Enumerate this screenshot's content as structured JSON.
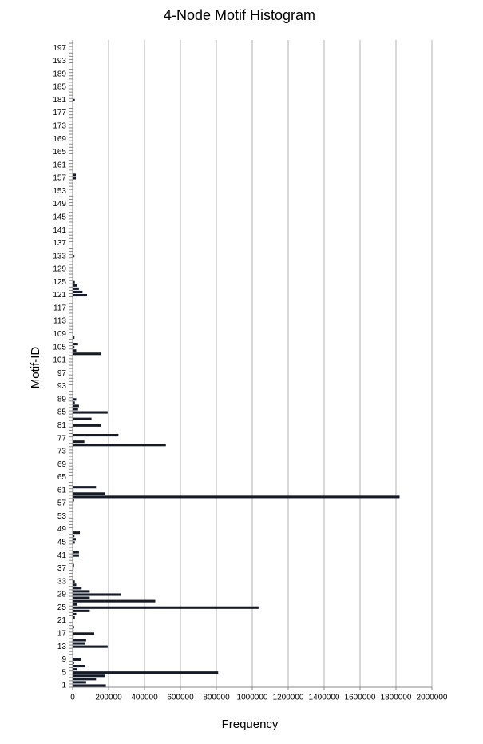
{
  "chart_data": {
    "type": "barh",
    "title": "4-Node Motif Histogram",
    "xlabel": "Frequency",
    "ylabel": "Motif-ID",
    "categories": [
      "1",
      null,
      null,
      null,
      "5",
      null,
      null,
      null,
      "9",
      null,
      null,
      null,
      "13",
      null,
      null,
      null,
      "17",
      null,
      null,
      null,
      "21",
      null,
      null,
      null,
      "25",
      null,
      null,
      null,
      "29",
      null,
      null,
      null,
      "33",
      null,
      null,
      null,
      "37",
      null,
      null,
      null,
      "41",
      null,
      null,
      null,
      "45",
      null,
      null,
      null,
      "49",
      null,
      null,
      null,
      "53",
      null,
      null,
      null,
      "57",
      null,
      null,
      null,
      "61",
      null,
      null,
      null,
      "65",
      null,
      null,
      null,
      "69",
      null,
      null,
      null,
      "73",
      null,
      null,
      null,
      "77",
      null,
      null,
      null,
      "81",
      null,
      null,
      null,
      "85",
      null,
      null,
      null,
      "89",
      null,
      null,
      null,
      "93",
      null,
      null,
      null,
      "97",
      null,
      null,
      null,
      "101",
      null,
      null,
      null,
      "105",
      null,
      null,
      null,
      "109",
      null,
      null,
      null,
      "113",
      null,
      null,
      null,
      "117",
      null,
      null,
      null,
      "121",
      null,
      null,
      null,
      "125",
      null,
      null,
      null,
      "129",
      null,
      null,
      null,
      "133",
      null,
      null,
      null,
      "137",
      null,
      null,
      null,
      "141",
      null,
      null,
      null,
      "145",
      null,
      null,
      null,
      "149",
      null,
      null,
      null,
      "153",
      null,
      null,
      null,
      "157",
      null,
      null,
      null,
      "161",
      null,
      null,
      null,
      "165",
      null,
      null,
      null,
      "169",
      null,
      null,
      null,
      "173",
      null,
      null,
      null,
      "177",
      null,
      null,
      null,
      "181",
      null,
      null,
      null,
      "185",
      null,
      null,
      null,
      "189",
      null,
      null,
      null,
      "193",
      null,
      null,
      null,
      "197",
      null,
      null
    ],
    "values": [
      185000,
      75000,
      130000,
      180000,
      810000,
      25000,
      70000,
      8000,
      45000,
      3000,
      2000,
      2000,
      195000,
      70000,
      75000,
      5000,
      120000,
      5000,
      8000,
      4000,
      2000,
      12000,
      20000,
      95000,
      1035000,
      25000,
      460000,
      95000,
      270000,
      95000,
      50000,
      20000,
      12000,
      4000,
      3000,
      2000,
      5000,
      8000,
      2000,
      2000,
      35000,
      35000,
      3000,
      2000,
      12000,
      18000,
      10000,
      40000,
      3000,
      2000,
      2000,
      2000,
      2000,
      2000,
      2000,
      2000,
      3000,
      8000,
      1820000,
      180000,
      5000,
      130000,
      3000,
      2000,
      3000,
      2000,
      2000,
      5000,
      3000,
      2000,
      2000,
      2000,
      2000,
      2000,
      519000,
      65000,
      3000,
      255000,
      3000,
      2000,
      160000,
      2000,
      105000,
      5000,
      195000,
      30000,
      35000,
      12000,
      20000,
      2000,
      2000,
      2000,
      2000,
      2000,
      2000,
      2000,
      2000,
      2000,
      2000,
      2000,
      2000,
      2000,
      160000,
      20000,
      10000,
      30000,
      3000,
      10000,
      2000,
      2000,
      2000,
      2000,
      2000,
      2000,
      2000,
      2000,
      2000,
      2000,
      2000,
      2000,
      80000,
      55000,
      35000,
      25000,
      12000,
      2000,
      2000,
      2000,
      2000,
      2000,
      2000,
      2000,
      10000,
      2000,
      2000,
      2000,
      2000,
      2000,
      2000,
      2000,
      2000,
      2000,
      2000,
      2000,
      2000,
      2000,
      2000,
      2000,
      2000,
      2000,
      2000,
      2000,
      2000,
      2000,
      2000,
      2000,
      18000,
      18000,
      2000,
      2000,
      2000,
      2000,
      2000,
      2000,
      2000,
      2000,
      2000,
      2000,
      2000,
      2000,
      2000,
      2000,
      2000,
      2000,
      2000,
      2000,
      2000,
      2000,
      2000,
      2000,
      12000,
      2000,
      2000,
      2000,
      2000,
      2000,
      2000,
      2000,
      2000,
      2000,
      2000,
      2000,
      2000,
      2000,
      2000,
      2000,
      2000,
      2000,
      2000
    ],
    "color": "#161b28",
    "xlim": [
      0,
      2000000
    ],
    "xticks": [
      0,
      200000,
      400000,
      600000,
      800000,
      1000000,
      1200000,
      1400000,
      1600000,
      1800000,
      2000000
    ],
    "grid": true
  }
}
